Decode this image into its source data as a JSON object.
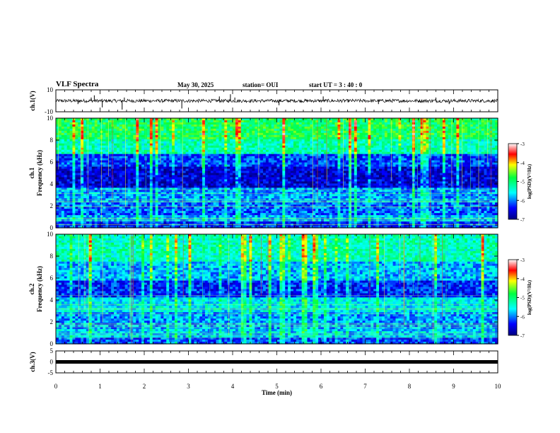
{
  "header": {
    "title": "VLF Spectra",
    "date": "May 30, 2025",
    "station": "station= OUI",
    "start": "start  UT =   3  : 40 : 0"
  },
  "chart_data": [
    {
      "type": "line",
      "panel": "ch1-waveform",
      "ylabel": "ch.1(V)",
      "ylim": [
        -10,
        10
      ],
      "yticks": [
        "10",
        "-10"
      ],
      "xlim": [
        0,
        10
      ],
      "baseline": 0,
      "noise_amplitude": 1.5,
      "spikes": [
        {
          "x": 0.5,
          "y": -3
        },
        {
          "x": 0.8,
          "y": 3
        },
        {
          "x": 0.87,
          "y": 5
        },
        {
          "x": 1.05,
          "y": -6
        },
        {
          "x": 1.5,
          "y": -8
        },
        {
          "x": 1.55,
          "y": 3
        },
        {
          "x": 2.85,
          "y": -7
        },
        {
          "x": 3.7,
          "y": 4
        },
        {
          "x": 3.95,
          "y": 6
        },
        {
          "x": 4.05,
          "y": 3
        },
        {
          "x": 5.05,
          "y": -4
        },
        {
          "x": 6.05,
          "y": 4
        },
        {
          "x": 7.3,
          "y": -3
        },
        {
          "x": 8.6,
          "y": 3
        },
        {
          "x": 8.9,
          "y": -3
        }
      ],
      "color": "#000000"
    },
    {
      "type": "heatmap",
      "panel": "ch1-spectrogram",
      "ylabel": "ch.1\nFrequency (kHz)",
      "ylim": [
        0,
        10
      ],
      "yticks": [
        "0",
        "2",
        "4",
        "6",
        "8",
        "10"
      ],
      "xlim": [
        0,
        10
      ],
      "description_levels": [
        {
          "band_khz": [
            0,
            0.6
          ],
          "level": -6.3
        },
        {
          "band_khz": [
            0.6,
            1.2
          ],
          "level": -5.8
        },
        {
          "band_khz": [
            1.2,
            2.4
          ],
          "level": -6.1
        },
        {
          "band_khz": [
            2.4,
            3.6
          ],
          "level": -5.9
        },
        {
          "band_khz": [
            3.6,
            5.6
          ],
          "level": -6.6
        },
        {
          "band_khz": [
            5.6,
            6.8
          ],
          "level": -6.2
        },
        {
          "band_khz": [
            6.8,
            8.0
          ],
          "level": -5.3
        },
        {
          "band_khz": [
            8.0,
            10.0
          ],
          "level": -4.9
        }
      ],
      "colorbar": {
        "label": "log(PSD)(V²/Hz)",
        "min": -7,
        "max": -3,
        "ticks": [
          "-3",
          "-4",
          "-5",
          "-6",
          "-7"
        ]
      }
    },
    {
      "type": "heatmap",
      "panel": "ch2-spectrogram",
      "ylabel": "ch.2\nFrequency (kHz)",
      "ylim": [
        0,
        10
      ],
      "yticks": [
        "0",
        "2",
        "4",
        "6",
        "8",
        "10"
      ],
      "xlim": [
        0,
        10
      ],
      "description_levels": [
        {
          "band_khz": [
            0,
            0.6
          ],
          "level": -6.2
        },
        {
          "band_khz": [
            0.6,
            1.4
          ],
          "level": -5.7
        },
        {
          "band_khz": [
            1.4,
            2.8
          ],
          "level": -5.9
        },
        {
          "band_khz": [
            2.8,
            4.2
          ],
          "level": -5.6
        },
        {
          "band_khz": [
            4.2,
            5.8
          ],
          "level": -6.3
        },
        {
          "band_khz": [
            5.8,
            7.5
          ],
          "level": -5.8
        },
        {
          "band_khz": [
            7.5,
            10.0
          ],
          "level": -5.3
        }
      ],
      "colorbar": {
        "label": "log(PSD)(V²/Hz)",
        "min": -7,
        "max": -3,
        "ticks": [
          "-3",
          "-4",
          "-5",
          "-6",
          "-7"
        ]
      }
    },
    {
      "type": "line",
      "panel": "ch3-waveform",
      "ylabel": "ch.3(V)",
      "ylim": [
        -5,
        5
      ],
      "yticks": [
        "5",
        "0",
        "-5"
      ],
      "xlim": [
        0,
        10
      ],
      "baseline": 0,
      "noise_amplitude": 0.3,
      "color": "#000000"
    }
  ],
  "xaxis": {
    "label": "Time (min)",
    "ticks": [
      "0",
      "1",
      "2",
      "3",
      "4",
      "5",
      "6",
      "7",
      "8",
      "9",
      "10"
    ]
  }
}
